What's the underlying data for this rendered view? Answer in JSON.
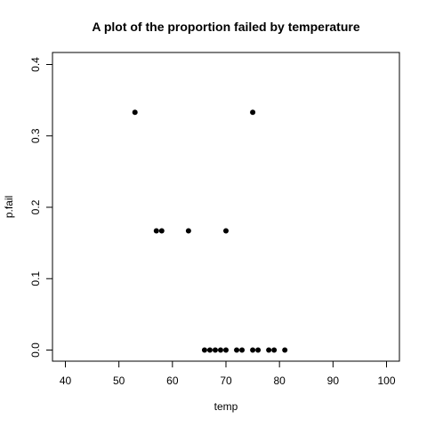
{
  "chart_data": {
    "type": "scatter",
    "title": "A plot of the proportion failed by temperature",
    "xlabel": "temp",
    "ylabel": "p.fail",
    "xlim": [
      40,
      100
    ],
    "ylim": [
      0,
      0.4
    ],
    "xticks": [
      "40",
      "50",
      "60",
      "70",
      "80",
      "90",
      "100"
    ],
    "yticks": [
      "0.0",
      "0.1",
      "0.2",
      "0.3",
      "0.4"
    ],
    "grid": false,
    "legend": "none",
    "point_color": "#000000",
    "points": [
      {
        "x": 53,
        "y": 0.333
      },
      {
        "x": 75,
        "y": 0.333
      },
      {
        "x": 57,
        "y": 0.167
      },
      {
        "x": 58,
        "y": 0.167
      },
      {
        "x": 63,
        "y": 0.167
      },
      {
        "x": 70,
        "y": 0.167
      },
      {
        "x": 66,
        "y": 0
      },
      {
        "x": 67,
        "y": 0
      },
      {
        "x": 68,
        "y": 0
      },
      {
        "x": 69,
        "y": 0
      },
      {
        "x": 70,
        "y": 0
      },
      {
        "x": 72,
        "y": 0
      },
      {
        "x": 73,
        "y": 0
      },
      {
        "x": 75,
        "y": 0
      },
      {
        "x": 76,
        "y": 0
      },
      {
        "x": 78,
        "y": 0
      },
      {
        "x": 79,
        "y": 0
      },
      {
        "x": 81,
        "y": 0
      }
    ]
  }
}
